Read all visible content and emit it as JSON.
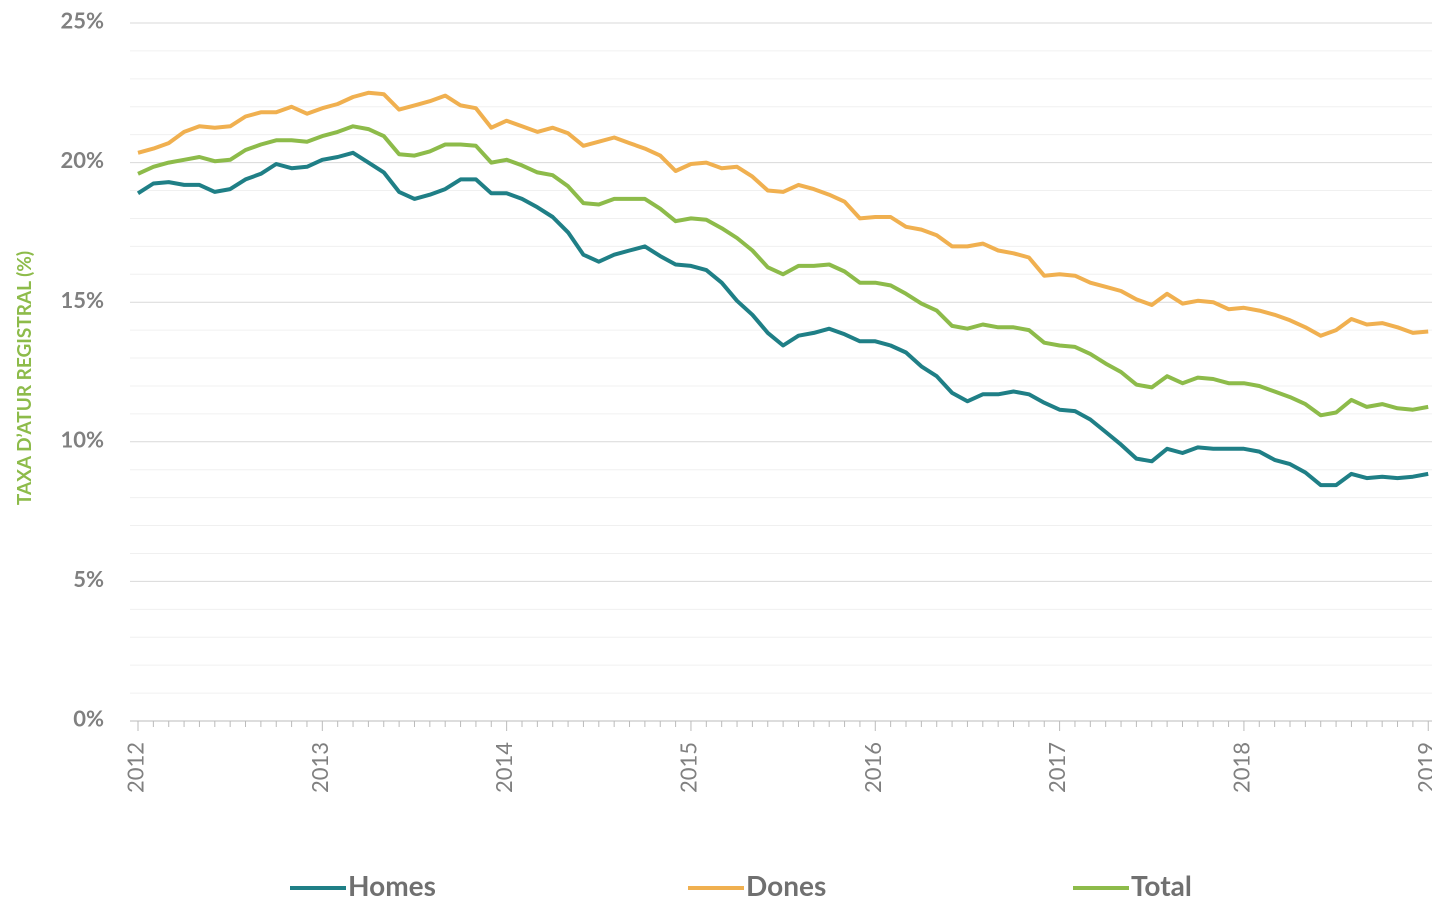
{
  "chart_data": {
    "type": "line",
    "ylabel": "TAXA D’ATUR REGISTRAL (%)",
    "categories": [
      "2012",
      null,
      null,
      null,
      null,
      null,
      null,
      null,
      null,
      null,
      null,
      null,
      "2013",
      null,
      null,
      null,
      null,
      null,
      null,
      null,
      null,
      null,
      null,
      null,
      "2014",
      null,
      null,
      null,
      null,
      null,
      null,
      null,
      null,
      null,
      null,
      null,
      "2015",
      null,
      null,
      null,
      null,
      null,
      null,
      null,
      null,
      null,
      null,
      null,
      "2016",
      null,
      null,
      null,
      null,
      null,
      null,
      null,
      null,
      null,
      null,
      null,
      "2017",
      null,
      null,
      null,
      null,
      null,
      null,
      null,
      null,
      null,
      null,
      null,
      "2018",
      null,
      null,
      null,
      null,
      null,
      null,
      null,
      null,
      null,
      null,
      null,
      "2019"
    ],
    "series": [
      {
        "name": "Homes",
        "color": "#1f7f86",
        "values": [
          18.9,
          19.25,
          19.3,
          19.2,
          19.2,
          18.95,
          19.05,
          19.4,
          19.6,
          19.95,
          19.8,
          19.85,
          20.1,
          20.2,
          20.35,
          20.0,
          19.65,
          18.95,
          18.7,
          18.85,
          19.05,
          19.4,
          19.4,
          18.9,
          18.9,
          18.7,
          18.4,
          18.05,
          17.5,
          16.7,
          16.45,
          16.7,
          16.85,
          17.0,
          16.65,
          16.35,
          16.3,
          16.15,
          15.7,
          15.05,
          14.55,
          13.9,
          13.45,
          13.8,
          13.9,
          14.05,
          13.85,
          13.6,
          13.6,
          13.45,
          13.2,
          12.7,
          12.35,
          11.75,
          11.45,
          11.7,
          11.7,
          11.8,
          11.7,
          11.4,
          11.15,
          11.1,
          10.8,
          10.35,
          9.9,
          9.4,
          9.3,
          9.75,
          9.6,
          9.8,
          9.75,
          9.75,
          9.75,
          9.65,
          9.35,
          9.2,
          8.9,
          8.45,
          8.45,
          8.85,
          8.7,
          8.75,
          8.7,
          8.75,
          8.85
        ]
      },
      {
        "name": "Dones",
        "color": "#f0b050",
        "values": [
          20.35,
          20.5,
          20.7,
          21.1,
          21.3,
          21.25,
          21.3,
          21.65,
          21.8,
          21.8,
          22.0,
          21.75,
          21.95,
          22.1,
          22.35,
          22.5,
          22.45,
          21.9,
          22.05,
          22.2,
          22.4,
          22.05,
          21.95,
          21.25,
          21.5,
          21.3,
          21.1,
          21.25,
          21.05,
          20.6,
          20.75,
          20.9,
          20.7,
          20.5,
          20.25,
          19.7,
          19.95,
          20.0,
          19.8,
          19.85,
          19.5,
          19.0,
          18.95,
          19.2,
          19.05,
          18.85,
          18.6,
          18.0,
          18.05,
          18.05,
          17.7,
          17.6,
          17.4,
          17.0,
          17.0,
          17.1,
          16.85,
          16.75,
          16.6,
          15.95,
          16.0,
          15.95,
          15.7,
          15.55,
          15.4,
          15.1,
          14.9,
          15.3,
          14.95,
          15.05,
          15.0,
          14.75,
          14.8,
          14.7,
          14.55,
          14.35,
          14.1,
          13.8,
          14.0,
          14.4,
          14.2,
          14.25,
          14.1,
          13.9,
          13.95
        ]
      },
      {
        "name": "Total",
        "color": "#8dbb4a",
        "values": [
          19.6,
          19.85,
          20.0,
          20.1,
          20.2,
          20.05,
          20.1,
          20.45,
          20.65,
          20.8,
          20.8,
          20.75,
          20.95,
          21.1,
          21.3,
          21.2,
          20.95,
          20.3,
          20.25,
          20.4,
          20.65,
          20.65,
          20.6,
          20.0,
          20.1,
          19.9,
          19.65,
          19.55,
          19.15,
          18.55,
          18.5,
          18.7,
          18.7,
          18.7,
          18.35,
          17.9,
          18.0,
          17.95,
          17.65,
          17.3,
          16.85,
          16.25,
          16.0,
          16.3,
          16.3,
          16.35,
          16.1,
          15.7,
          15.7,
          15.6,
          15.3,
          14.95,
          14.7,
          14.15,
          14.05,
          14.2,
          14.1,
          14.1,
          14.0,
          13.55,
          13.45,
          13.4,
          13.15,
          12.8,
          12.5,
          12.05,
          11.95,
          12.35,
          12.1,
          12.3,
          12.25,
          12.1,
          12.1,
          12.0,
          11.8,
          11.6,
          11.35,
          10.95,
          11.05,
          11.5,
          11.25,
          11.35,
          11.2,
          11.15,
          11.25
        ]
      }
    ],
    "ylim": [
      0,
      25
    ],
    "yticks": [
      {
        "value": 0,
        "label": "0%"
      },
      {
        "value": 5,
        "label": "5%"
      },
      {
        "value": 10,
        "label": "10%"
      },
      {
        "value": 15,
        "label": "15%"
      },
      {
        "value": 20,
        "label": "20%"
      },
      {
        "value": 25,
        "label": "25%"
      }
    ],
    "yminor_ticks": [
      1,
      2,
      3,
      4,
      6,
      7,
      8,
      9,
      11,
      12,
      13,
      14,
      16,
      17,
      18,
      19,
      21,
      22,
      23,
      24
    ],
    "grid": true,
    "legend": "bottom"
  }
}
